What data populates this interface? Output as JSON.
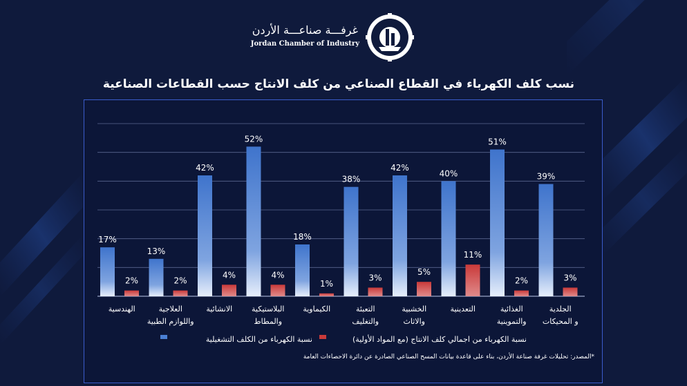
{
  "header": {
    "org_name_ar": "غرفـــة صناعـــة الأردن",
    "org_name_en": "Jordan Chamber of Industry",
    "logo_icon": "gear-logo-icon"
  },
  "colors": {
    "background": "#0f1a3c",
    "series_operational": "#4a7fd4",
    "series_total": "#c93a3a"
  },
  "chart_data": {
    "type": "bar",
    "title": "نسب كلف الكهرباء في القطاع الصناعي من كلف الانتاج حسب القطاعات الصناعية",
    "xlabel": "",
    "ylabel": "",
    "ylim": [
      0,
      60
    ],
    "grid": true,
    "legend_position": "bottom",
    "categories": [
      "الهندسية",
      "العلاجية واللوازم الطبية",
      "الانشائية",
      "البلاستيكية والمطاط",
      "الكيماوية",
      "التعبئة والتغليف",
      "الخشبية والاثاث",
      "التعدينية",
      "الغذائية والتموينية",
      "الجلدية و المحيكات"
    ],
    "series": [
      {
        "name": "نسبة الكهرباء من الكلف التشغيلية",
        "values": [
          17,
          13,
          42,
          52,
          18,
          38,
          42,
          40,
          51,
          39
        ],
        "labels": [
          "17%",
          "13%",
          "42%",
          "52%",
          "18%",
          "38%",
          "42%",
          "40%",
          "51%",
          "39%"
        ]
      },
      {
        "name": "نسبة الكهرباء من اجمالي كلف الانتاج (مع المواد الأولية)",
        "values": [
          2,
          2,
          4,
          4,
          1,
          3,
          5,
          11,
          2,
          3
        ],
        "labels": [
          "2%",
          "2%",
          "4%",
          "4%",
          "1%",
          "3%",
          "5%",
          "11%",
          "2%",
          "3%"
        ]
      }
    ]
  },
  "source_note": "*المصدر: تحليلات غرفة صناعة الأردن، بناء على قاعدة بيانات المسح الصناعي الصادرة عن دائرة الاحصاءات العامة"
}
